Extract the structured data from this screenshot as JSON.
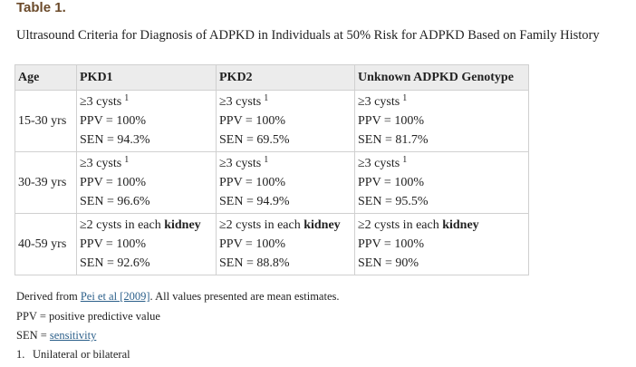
{
  "table_label": "Table 1.",
  "caption": "Ultrasound Criteria for Diagnosis of ADPKD in Individuals at 50% Risk for ADPKD Based on Family History",
  "headers": [
    "Age",
    "PKD1",
    "PKD2",
    "Unknown ADPKD Genotype"
  ],
  "rows": [
    {
      "age": "15-30 yrs",
      "cells": [
        {
          "criterion": "≥3 cysts",
          "note": "1",
          "ppv": "PPV = 100%",
          "sen": "SEN = 94.3%"
        },
        {
          "criterion": "≥3 cysts",
          "note": "1",
          "ppv": "PPV = 100%",
          "sen": "SEN = 69.5%"
        },
        {
          "criterion": "≥3 cysts",
          "note": "1",
          "ppv": "PPV = 100%",
          "sen": "SEN = 81.7%"
        }
      ]
    },
    {
      "age": "30-39 yrs",
      "cells": [
        {
          "criterion": "≥3 cysts",
          "note": "1",
          "ppv": "PPV = 100%",
          "sen": "SEN = 96.6%"
        },
        {
          "criterion": "≥3 cysts",
          "note": "1",
          "ppv": "PPV = 100%",
          "sen": "SEN = 94.9%"
        },
        {
          "criterion": "≥3 cysts",
          "note": "1",
          "ppv": "PPV = 100%",
          "sen": "SEN = 95.5%"
        }
      ]
    },
    {
      "age": "40-59 yrs",
      "cells": [
        {
          "criterion_pre": "≥2 cysts in each ",
          "criterion_bold": "kidney",
          "ppv": "PPV = 100%",
          "sen": "SEN = 92.6%"
        },
        {
          "criterion_pre": "≥2 cysts in each ",
          "criterion_bold": "kidney",
          "ppv": "PPV = 100%",
          "sen": "SEN = 88.8%"
        },
        {
          "criterion_pre": "≥2 cysts in each ",
          "criterion_bold": "kidney",
          "ppv": "PPV = 100%",
          "sen": "SEN = 90%"
        }
      ]
    }
  ],
  "footer": {
    "derived_prefix": "Derived from ",
    "derived_link": "Pei et al [2009]",
    "derived_suffix": ". All values presented are mean estimates.",
    "ppv_def": "PPV = positive predictive value",
    "sen_prefix": "SEN = ",
    "sen_link": "sensitivity",
    "note_number": "1.",
    "note_text": "Unilateral or bilateral"
  },
  "colors": {
    "label_brown": "#6b4a2a",
    "header_bg": "#ececec",
    "border": "#d0d0d0",
    "link": "#2b5f8a"
  }
}
